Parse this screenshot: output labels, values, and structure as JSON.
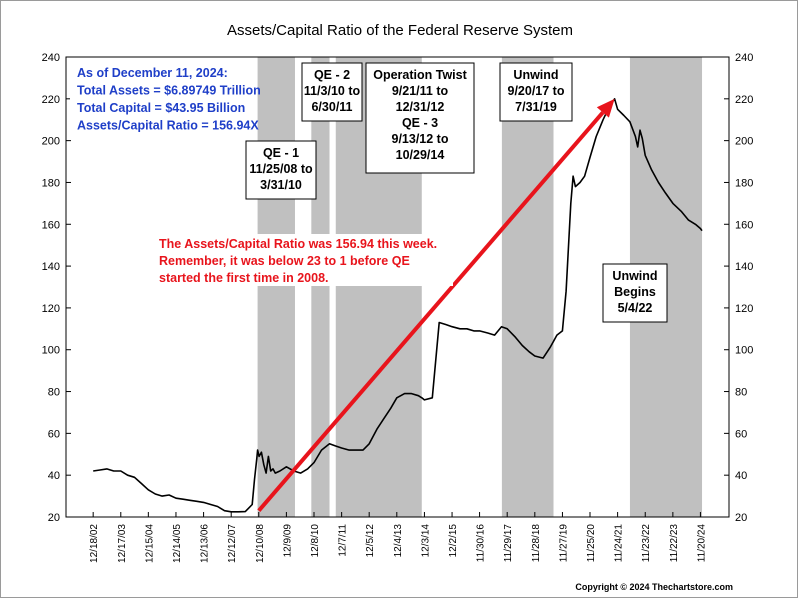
{
  "chart_data": {
    "type": "line",
    "title": "Assets/Capital Ratio of the Federal Reserve System",
    "xlabel": "",
    "ylabel": "",
    "ylim": [
      20,
      240
    ],
    "y_ticks": [
      20,
      40,
      60,
      80,
      100,
      120,
      140,
      160,
      180,
      200,
      220,
      240
    ],
    "grid": false,
    "x_tick_labels": [
      "12/18/02",
      "12/17/03",
      "12/15/04",
      "12/14/05",
      "12/13/06",
      "12/12/07",
      "12/10/08",
      "12/9/09",
      "12/8/10",
      "12/7/11",
      "12/5/12",
      "12/4/13",
      "12/3/14",
      "12/2/15",
      "11/30/16",
      "11/29/17",
      "11/28/18",
      "11/27/19",
      "11/25/20",
      "11/24/21",
      "11/23/22",
      "11/22/23",
      "11/20/24"
    ],
    "series": [
      {
        "values": [
          [
            "12/18/02",
            42
          ],
          [
            "3/03",
            42.5
          ],
          [
            "6/03",
            43
          ],
          [
            "9/03",
            42
          ],
          [
            "12/17/03",
            42
          ],
          [
            "3/04",
            40
          ],
          [
            "6/04",
            39
          ],
          [
            "9/04",
            36
          ],
          [
            "12/15/04",
            33
          ],
          [
            "3/05",
            31
          ],
          [
            "6/05",
            30
          ],
          [
            "9/05",
            30.5
          ],
          [
            "12/14/05",
            29
          ],
          [
            "3/06",
            28.5
          ],
          [
            "6/06",
            28
          ],
          [
            "9/06",
            27.5
          ],
          [
            "12/13/06",
            27
          ],
          [
            "3/07",
            26
          ],
          [
            "6/07",
            25
          ],
          [
            "9/07",
            23
          ],
          [
            "12/12/07",
            22.5
          ],
          [
            "3/08",
            22.5
          ],
          [
            "6/08",
            22.6
          ],
          [
            "9/08",
            26
          ],
          [
            "10/08",
            38
          ],
          [
            "11/08",
            48
          ],
          [
            "11/25/08",
            52
          ],
          [
            "12/08",
            49
          ],
          [
            "1/09",
            51
          ],
          [
            "2/09",
            45
          ],
          [
            "3/09",
            41
          ],
          [
            "4/09",
            49
          ],
          [
            "5/09",
            42
          ],
          [
            "6/09",
            43
          ],
          [
            "7/09",
            41
          ],
          [
            "9/09",
            42
          ],
          [
            "12/9/09",
            44
          ],
          [
            "3/10",
            42
          ],
          [
            "6/10",
            41
          ],
          [
            "9/10",
            43
          ],
          [
            "12/8/10",
            46
          ],
          [
            "3/11",
            52
          ],
          [
            "6/30/11",
            55
          ],
          [
            "9/11",
            54
          ],
          [
            "12/7/11",
            53
          ],
          [
            "3/12",
            52
          ],
          [
            "6/12",
            52
          ],
          [
            "9/12",
            52
          ],
          [
            "12/5/12",
            55
          ],
          [
            "3/13",
            62
          ],
          [
            "6/13",
            67
          ],
          [
            "9/13",
            72
          ],
          [
            "12/4/13",
            77
          ],
          [
            "3/14",
            79
          ],
          [
            "6/14",
            79
          ],
          [
            "9/14",
            78
          ],
          [
            "10/29/14",
            77
          ],
          [
            "12/3/14",
            76
          ],
          [
            "3/15",
            77
          ],
          [
            "6/15",
            113
          ],
          [
            "9/15",
            112
          ],
          [
            "12/2/15",
            111
          ],
          [
            "3/16",
            110
          ],
          [
            "6/16",
            110
          ],
          [
            "9/16",
            109
          ],
          [
            "11/30/16",
            109
          ],
          [
            "3/17",
            108
          ],
          [
            "6/17",
            107
          ],
          [
            "9/17",
            111
          ],
          [
            "11/29/17",
            110
          ],
          [
            "3/18",
            106
          ],
          [
            "6/18",
            102
          ],
          [
            "9/18",
            99
          ],
          [
            "11/28/18",
            97
          ],
          [
            "3/19",
            96
          ],
          [
            "6/19",
            101
          ],
          [
            "7/31/19",
            104
          ],
          [
            "9/19",
            107
          ],
          [
            "11/27/19",
            109
          ],
          [
            "1/20",
            128
          ],
          [
            "3/20",
            170
          ],
          [
            "4/20",
            183
          ],
          [
            "5/20",
            178
          ],
          [
            "7/20",
            180
          ],
          [
            "9/20",
            183
          ],
          [
            "11/25/20",
            192
          ],
          [
            "2/21",
            202
          ],
          [
            "5/21",
            210
          ],
          [
            "8/21",
            217
          ],
          [
            "10/21",
            220
          ],
          [
            "11/24/21",
            215
          ],
          [
            "2/22",
            212
          ],
          [
            "5/4/22",
            209
          ],
          [
            "7/22",
            202
          ],
          [
            "8/22",
            197
          ],
          [
            "9/22",
            205
          ],
          [
            "10/22",
            201
          ],
          [
            "11/23/22",
            193
          ],
          [
            "2/23",
            186
          ],
          [
            "5/23",
            180
          ],
          [
            "8/23",
            175
          ],
          [
            "11/22/23",
            170
          ],
          [
            "3/24",
            166
          ],
          [
            "6/24",
            162
          ],
          [
            "9/24",
            160
          ],
          [
            "11/20/24",
            158
          ],
          [
            "12/11/24",
            156.94
          ]
        ]
      }
    ],
    "shaded_periods": [
      {
        "start": "11/25/08",
        "end": "3/31/10"
      },
      {
        "start": "11/3/10",
        "end": "6/30/11"
      },
      {
        "start": "9/21/11",
        "end": "10/29/14"
      },
      {
        "start": "9/20/17",
        "end": "7/31/19"
      },
      {
        "start": "5/4/22",
        "end": "12/11/24"
      }
    ],
    "trend_arrow": {
      "from": [
        "12/10/08",
        23
      ],
      "to": [
        "10/21",
        220
      ]
    },
    "annotations": {
      "info_lines": [
        "As of December 11, 2024:",
        "Total Assets = $6.89749 Trillion",
        "Total Capital  = $43.95 Billion",
        "Assets/Capital Ratio = 156.94X"
      ],
      "qe1_lines": [
        "QE - 1",
        "11/25/08 to",
        "3/31/10"
      ],
      "qe2_lines": [
        "QE - 2",
        "11/3/10 to",
        "6/30/11"
      ],
      "twist_lines": [
        "Operation Twist",
        "9/21/11 to",
        "12/31/12",
        "QE - 3",
        "9/13/12 to",
        "10/29/14"
      ],
      "unwind_lines": [
        "Unwind",
        "9/20/17 to",
        "7/31/19"
      ],
      "unwind_begins_lines": [
        "Unwind",
        "Begins",
        "5/4/22"
      ],
      "callout_lines": [
        "The Assets/Capital Ratio was 156.94 this week.",
        "Remember, it was below 23 to 1 before QE",
        "started the first time in 2008."
      ]
    },
    "copyright": "Copyright © 2024 Thechartstore.com",
    "colors": {
      "line": "#000000",
      "shade": "#c0c0c0",
      "arrow": "#e8141c",
      "info_text": "#1f3fc8",
      "callout_text": "#e8141c"
    }
  }
}
